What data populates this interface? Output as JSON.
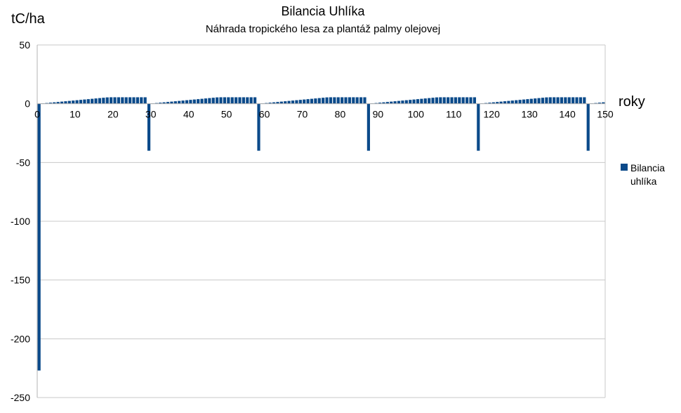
{
  "chart_data": {
    "type": "bar",
    "title": "Bilancia Uhlíka",
    "subtitle": "Náhrada tropického lesa za plantáž palmy olejovej",
    "xlabel": "roky",
    "ylabel": "tC/ha",
    "xlim": [
      0,
      150
    ],
    "ylim": [
      -250,
      50
    ],
    "x_ticks": [
      0,
      10,
      20,
      30,
      40,
      50,
      60,
      70,
      80,
      90,
      100,
      110,
      120,
      130,
      140,
      150
    ],
    "y_ticks": [
      50,
      0,
      -50,
      -100,
      -150,
      -200,
      -250
    ],
    "grid": true,
    "legend_position": "right",
    "color": "#0b4a8a",
    "series": [
      {
        "name": "Bilancia uhlíka",
        "x": [
          0,
          1,
          2,
          3,
          4,
          5,
          6,
          7,
          8,
          9,
          10,
          11,
          12,
          13,
          14,
          15,
          16,
          17,
          18,
          19,
          20,
          21,
          22,
          23,
          24,
          25,
          26,
          27,
          28,
          29,
          30,
          31,
          32,
          33,
          34,
          35,
          36,
          37,
          38,
          39,
          40,
          41,
          42,
          43,
          44,
          45,
          46,
          47,
          48,
          49,
          50,
          51,
          52,
          53,
          54,
          55,
          56,
          57,
          58,
          59,
          60,
          61,
          62,
          63,
          64,
          65,
          66,
          67,
          68,
          69,
          70,
          71,
          72,
          73,
          74,
          75,
          76,
          77,
          78,
          79,
          80,
          81,
          82,
          83,
          84,
          85,
          86,
          87,
          88,
          89,
          90,
          91,
          92,
          93,
          94,
          95,
          96,
          97,
          98,
          99,
          100,
          101,
          102,
          103,
          104,
          105,
          106,
          107,
          108,
          109,
          110,
          111,
          112,
          113,
          114,
          115,
          116,
          117,
          118,
          119,
          120,
          121,
          122,
          123,
          124,
          125,
          126,
          127,
          128,
          129,
          130,
          131,
          132,
          133,
          134,
          135,
          136,
          137,
          138,
          139,
          140,
          141,
          142,
          143,
          144,
          145,
          146,
          147,
          148,
          149
        ],
        "values": [
          -227,
          0.3,
          0.6,
          0.9,
          1.2,
          1.5,
          1.8,
          2.1,
          2.4,
          2.7,
          3,
          3.3,
          3.6,
          3.9,
          4.2,
          4.5,
          4.8,
          5.1,
          5.4,
          5.5,
          5.5,
          5.5,
          5.5,
          5.5,
          5.5,
          5.5,
          5.5,
          5.5,
          5.5,
          -40,
          0.3,
          0.6,
          0.9,
          1.2,
          1.5,
          1.8,
          2.1,
          2.4,
          2.7,
          3,
          3.3,
          3.6,
          3.9,
          4.2,
          4.5,
          4.8,
          5.1,
          5.4,
          5.5,
          5.5,
          5.5,
          5.5,
          5.5,
          5.5,
          5.5,
          5.5,
          5.5,
          5.5,
          -40,
          0.3,
          0.6,
          0.9,
          1.2,
          1.5,
          1.8,
          2.1,
          2.4,
          2.7,
          3,
          3.3,
          3.6,
          3.9,
          4.2,
          4.5,
          4.8,
          5.1,
          5.4,
          5.5,
          5.5,
          5.5,
          5.5,
          5.5,
          5.5,
          5.5,
          5.5,
          5.5,
          5.5,
          -40,
          0.3,
          0.6,
          0.9,
          1.2,
          1.5,
          1.8,
          2.1,
          2.4,
          2.7,
          3,
          3.3,
          3.6,
          3.9,
          4.2,
          4.5,
          4.8,
          5.1,
          5.4,
          5.5,
          5.5,
          5.5,
          5.5,
          5.5,
          5.5,
          5.5,
          5.5,
          5.5,
          5.5,
          -40,
          0.3,
          0.6,
          0.9,
          1.2,
          1.5,
          1.8,
          2.1,
          2.4,
          2.7,
          3,
          3.3,
          3.6,
          3.9,
          4.2,
          4.5,
          4.8,
          5.1,
          5.4,
          5.5,
          5.5,
          5.5,
          5.5,
          5.5,
          5.5,
          5.5,
          5.5,
          5.5,
          5.5,
          -40,
          0.3,
          0.6,
          0.9,
          1.2
        ]
      }
    ],
    "legend_label_lines": [
      "Bilancia",
      "uhlíka"
    ]
  }
}
